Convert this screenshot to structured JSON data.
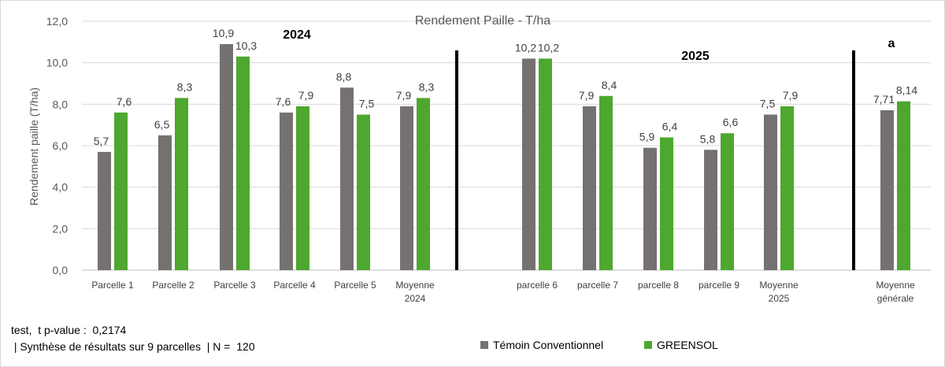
{
  "chart_data": {
    "type": "bar",
    "title": "Rendement Paille - T/ha",
    "ylabel": "Rendement paille  (T/ha)",
    "xlabel": "",
    "ylim": [
      0,
      12
    ],
    "yticks": [
      "0,0",
      "2,0",
      "4,0",
      "6,0",
      "8,0",
      "10,0",
      "12,0"
    ],
    "grid": true,
    "legend_position": "bottom",
    "colors": {
      "temoin": "#767171",
      "greensol": "#4ea72e",
      "grid": "#d9d9d9",
      "separator": "#000000"
    },
    "groups": [
      {
        "label": "2024",
        "categories": [
          "Parcelle 1",
          "Parcelle 2",
          "Parcelle 3",
          "Parcelle 4",
          "Parcelle 5",
          "Moyenne 2024"
        ]
      },
      {
        "label": "2025",
        "categories": [
          "parcelle 6",
          "parcelle 7",
          "parcelle 8",
          "parcelle 9",
          "Moyenne 2025"
        ]
      },
      {
        "label": "a",
        "categories": [
          "Moyenne générale"
        ]
      }
    ],
    "categories": [
      "Parcelle 1",
      "Parcelle 2",
      "Parcelle 3",
      "Parcelle 4",
      "Parcelle 5",
      "Moyenne 2024",
      "parcelle 6",
      "parcelle 7",
      "parcelle 8",
      "parcelle 9",
      "Moyenne 2025",
      "Moyenne générale"
    ],
    "category_lines": [
      [
        "Parcelle 1"
      ],
      [
        "Parcelle 2"
      ],
      [
        "Parcelle 3"
      ],
      [
        "Parcelle 4"
      ],
      [
        "Parcelle 5"
      ],
      [
        "Moyenne",
        "2024"
      ],
      [
        "parcelle 6"
      ],
      [
        "parcelle 7"
      ],
      [
        "parcelle 8"
      ],
      [
        "parcelle 9"
      ],
      [
        "Moyenne",
        "2025"
      ],
      [
        "Moyenne",
        "générale"
      ]
    ],
    "series": [
      {
        "name": "Témoin Conventionnel",
        "values": [
          5.7,
          6.5,
          10.9,
          7.6,
          8.8,
          7.9,
          10.2,
          7.9,
          5.9,
          5.8,
          7.5,
          7.71
        ],
        "labels": [
          "5,7",
          "6,5",
          "10,9",
          "7,6",
          "8,8",
          "7,9",
          "10,2",
          "7,9",
          "5,9",
          "5,8",
          "7,5",
          "7,71"
        ]
      },
      {
        "name": "GREENSOL",
        "values": [
          7.6,
          8.3,
          10.3,
          7.9,
          7.5,
          8.3,
          10.2,
          8.4,
          6.4,
          6.6,
          7.9,
          8.14
        ],
        "labels": [
          "7,6",
          "8,3",
          "10,3",
          "7,9",
          "7,5",
          "8,3",
          "10,2",
          "8,4",
          "6,4",
          "6,6",
          "7,9",
          "8,14"
        ]
      }
    ]
  },
  "notes": {
    "line1": "test,  t p-value :  0,2174",
    "line2": " | Synthèse de résultats sur 9 parcelles  | N =  120"
  }
}
